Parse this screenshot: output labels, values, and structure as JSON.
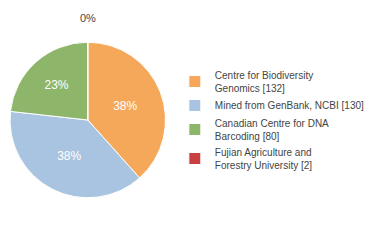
{
  "chart_data": {
    "type": "pie",
    "categories": [
      "Centre for Biodiversity\nGenomics [132]",
      "Mined from GenBank, NCBI [130]",
      "Canadian Centre for DNA\nBarcoding [80]",
      "Fujian Agriculture and\nForestry University [2]"
    ],
    "values": [
      38,
      38,
      23,
      0
    ],
    "value_labels": [
      "38%",
      "38%",
      "23%",
      "0%"
    ],
    "colors": [
      "#F5A85A",
      "#A8C4E0",
      "#8DB66B",
      "#C94040"
    ],
    "data_labels": true,
    "legend": "right"
  }
}
